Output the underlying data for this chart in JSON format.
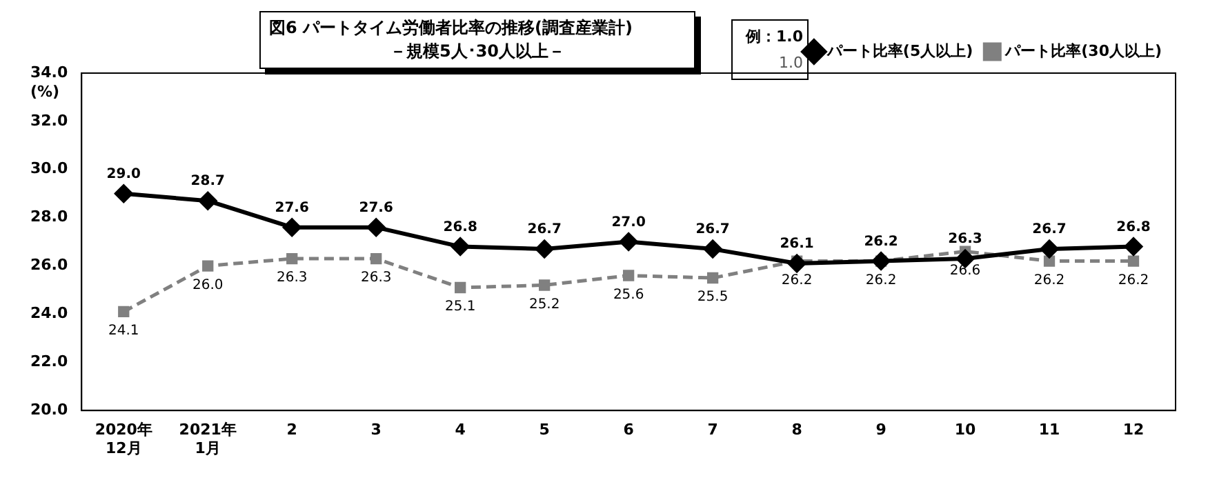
{
  "chart_data": {
    "type": "line",
    "title": "図6  パートタイム労働者比率の推移(調査産業計)",
    "subtitle": "－規模5人･30人以上－",
    "ylabel": "(%)",
    "annotations": [
      "例：1.0",
      "1.0"
    ],
    "categories": [
      "2020年\n12月",
      "2021年\n1月",
      "2",
      "3",
      "4",
      "5",
      "6",
      "7",
      "8",
      "9",
      "10",
      "11",
      "12"
    ],
    "series": [
      {
        "name": "パート比率(5人以上)",
        "color": "#000000",
        "marker": "diamond",
        "line_style": "solid",
        "values": [
          29.0,
          28.7,
          27.6,
          27.6,
          26.8,
          26.7,
          27.0,
          26.7,
          26.1,
          26.2,
          26.3,
          26.7,
          26.8
        ],
        "value_labels": [
          "29.0",
          "28.7",
          "27.6",
          "27.6",
          "26.8",
          "26.7",
          "27.0",
          "26.7",
          "26.1",
          "26.2",
          "26.3",
          "26.7",
          "26.8"
        ]
      },
      {
        "name": "パート比率(30人以上)",
        "color": "#808080",
        "marker": "square",
        "line_style": "dashed",
        "values": [
          24.1,
          26.0,
          26.3,
          26.3,
          25.1,
          25.2,
          25.6,
          25.5,
          26.2,
          26.2,
          26.6,
          26.2,
          26.2
        ],
        "value_labels": [
          "24.1",
          "26.0",
          "26.3",
          "26.3",
          "25.1",
          "25.2",
          "25.6",
          "25.5",
          "26.2",
          "26.2",
          "26.6",
          "26.2",
          "26.2"
        ]
      }
    ],
    "ylim": [
      20,
      34
    ],
    "yticks": [
      {
        "value": 20,
        "label": "20.0"
      },
      {
        "value": 22,
        "label": "22.0"
      },
      {
        "value": 24,
        "label": "24.0"
      },
      {
        "value": 26,
        "label": "26.0"
      },
      {
        "value": 28,
        "label": "28.0"
      },
      {
        "value": 30,
        "label": "30.0"
      },
      {
        "value": 32,
        "label": "32.0"
      },
      {
        "value": 34,
        "label": "34.0"
      }
    ],
    "grid": false,
    "legend": "top right"
  }
}
